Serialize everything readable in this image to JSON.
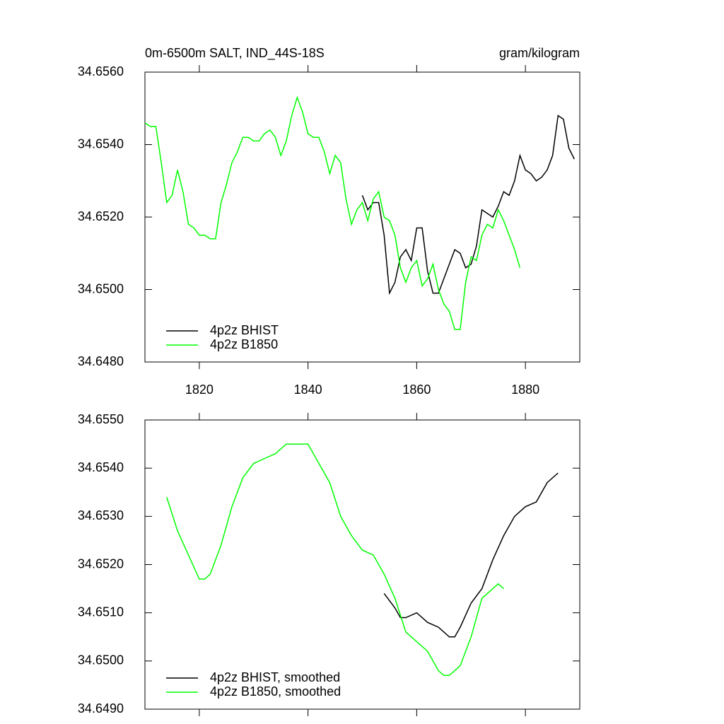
{
  "chart_data": [
    {
      "type": "line",
      "title": "0m-6500m SALT, IND_44S-18S",
      "units": "gram/kilogram",
      "xlim": [
        1810,
        1890
      ],
      "xticks": [
        1820,
        1840,
        1860,
        1880
      ],
      "show_xtick_labels": true,
      "ylim": [
        34.648,
        34.656
      ],
      "yticks": [
        {
          "value": 34.648,
          "label": "34.6480"
        },
        {
          "value": 34.65,
          "label": "34.6500"
        },
        {
          "value": 34.652,
          "label": "34.6520"
        },
        {
          "value": 34.654,
          "label": "34.6540"
        },
        {
          "value": 34.656,
          "label": "34.6560"
        }
      ],
      "legend": "lower left",
      "series": [
        {
          "name": "4p2z BHIST",
          "color": "#000000",
          "x": [
            1850,
            1851,
            1852,
            1853,
            1854,
            1855,
            1856,
            1857,
            1858,
            1859,
            1860,
            1861,
            1862,
            1863,
            1864,
            1865,
            1866,
            1867,
            1868,
            1869,
            1870,
            1871,
            1872,
            1873,
            1874,
            1875,
            1876,
            1877,
            1878,
            1879,
            1880,
            1881,
            1882,
            1883,
            1884,
            1885,
            1886,
            1887,
            1888,
            1889
          ],
          "values": [
            34.6526,
            34.6522,
            34.6524,
            34.6524,
            34.6515,
            34.6499,
            34.6502,
            34.6509,
            34.6511,
            34.6508,
            34.6517,
            34.6517,
            34.6505,
            34.6499,
            34.6499,
            34.6503,
            34.6507,
            34.6511,
            34.651,
            34.6506,
            34.6507,
            34.6512,
            34.6522,
            34.6521,
            34.652,
            34.6523,
            34.6527,
            34.6526,
            34.653,
            34.6537,
            34.6533,
            34.6532,
            34.653,
            34.6531,
            34.6533,
            34.6537,
            34.6548,
            34.6547,
            34.6539,
            34.6536
          ]
        },
        {
          "name": "4p2z B1850",
          "color": "#00ff00",
          "x": [
            1810,
            1811,
            1812,
            1813,
            1814,
            1815,
            1816,
            1817,
            1818,
            1819,
            1820,
            1821,
            1822,
            1823,
            1824,
            1825,
            1826,
            1827,
            1828,
            1829,
            1830,
            1831,
            1832,
            1833,
            1834,
            1835,
            1836,
            1837,
            1838,
            1839,
            1840,
            1841,
            1842,
            1843,
            1844,
            1845,
            1846,
            1847,
            1848,
            1849,
            1850,
            1851,
            1852,
            1853,
            1854,
            1855,
            1856,
            1857,
            1858,
            1859,
            1860,
            1861,
            1862,
            1863,
            1864,
            1865,
            1866,
            1867,
            1868,
            1869,
            1870,
            1871,
            1872,
            1873,
            1874,
            1875,
            1876,
            1877,
            1878,
            1879
          ],
          "values": [
            34.6546,
            34.6545,
            34.6545,
            34.6535,
            34.6524,
            34.6526,
            34.6533,
            34.6527,
            34.6518,
            34.6517,
            34.6515,
            34.6515,
            34.6514,
            34.6514,
            34.6524,
            34.6529,
            34.6535,
            34.6538,
            34.6542,
            34.6542,
            34.6541,
            34.6541,
            34.6543,
            34.6544,
            34.6542,
            34.6537,
            34.6541,
            34.6548,
            34.6553,
            34.6549,
            34.6543,
            34.6542,
            34.6542,
            34.6538,
            34.6532,
            34.6537,
            34.6535,
            34.6525,
            34.6518,
            34.6522,
            34.6524,
            34.6519,
            34.6525,
            34.6527,
            34.652,
            34.6519,
            34.6515,
            34.6506,
            34.6502,
            34.6506,
            34.6508,
            34.6501,
            34.6503,
            34.6507,
            34.65,
            34.6496,
            34.6494,
            34.6489,
            34.6489,
            34.6502,
            34.6509,
            34.6508,
            34.6515,
            34.6518,
            34.6517,
            34.6522,
            34.6519,
            34.6515,
            34.6511,
            34.6506
          ]
        }
      ]
    },
    {
      "type": "line",
      "xlim": [
        1810,
        1890
      ],
      "xticks": [
        1820,
        1840,
        1860,
        1880
      ],
      "show_xtick_labels": false,
      "ylim": [
        34.649,
        34.655
      ],
      "yticks": [
        {
          "value": 34.649,
          "label": "34.6490"
        },
        {
          "value": 34.65,
          "label": "34.6500"
        },
        {
          "value": 34.651,
          "label": "34.6510"
        },
        {
          "value": 34.652,
          "label": "34.6520"
        },
        {
          "value": 34.653,
          "label": "34.6530"
        },
        {
          "value": 34.654,
          "label": "34.6540"
        },
        {
          "value": 34.655,
          "label": "34.6550"
        }
      ],
      "legend": "lower left",
      "series": [
        {
          "name": "4p2z BHIST, smoothed",
          "color": "#000000",
          "x": [
            1854,
            1856,
            1857,
            1858,
            1860,
            1862,
            1864,
            1866,
            1867,
            1868,
            1870,
            1872,
            1874,
            1876,
            1878,
            1880,
            1882,
            1884,
            1886
          ],
          "values": [
            34.6514,
            34.6511,
            34.6509,
            34.6509,
            34.651,
            34.6508,
            34.6507,
            34.6505,
            34.6505,
            34.6507,
            34.6512,
            34.6515,
            34.6521,
            34.6526,
            34.653,
            34.6532,
            34.6533,
            34.6537,
            34.6539
          ]
        },
        {
          "name": "4p2z B1850, smoothed",
          "color": "#00ff00",
          "x": [
            1814,
            1816,
            1818,
            1820,
            1821,
            1822,
            1824,
            1826,
            1828,
            1830,
            1832,
            1834,
            1836,
            1838,
            1840,
            1842,
            1844,
            1846,
            1848,
            1850,
            1852,
            1854,
            1856,
            1858,
            1860,
            1862,
            1864,
            1865,
            1866,
            1868,
            1870,
            1872,
            1874,
            1875,
            1876
          ],
          "values": [
            34.6534,
            34.6527,
            34.6522,
            34.6517,
            34.6517,
            34.6518,
            34.6524,
            34.6532,
            34.6538,
            34.6541,
            34.6542,
            34.6543,
            34.6545,
            34.6545,
            34.6545,
            34.6541,
            34.6537,
            34.653,
            34.6526,
            34.6523,
            34.6522,
            34.6518,
            34.6513,
            34.6506,
            34.6504,
            34.6502,
            34.6498,
            34.6497,
            34.6497,
            34.6499,
            34.6505,
            34.6513,
            34.6515,
            34.6516,
            34.6515
          ]
        }
      ]
    }
  ]
}
